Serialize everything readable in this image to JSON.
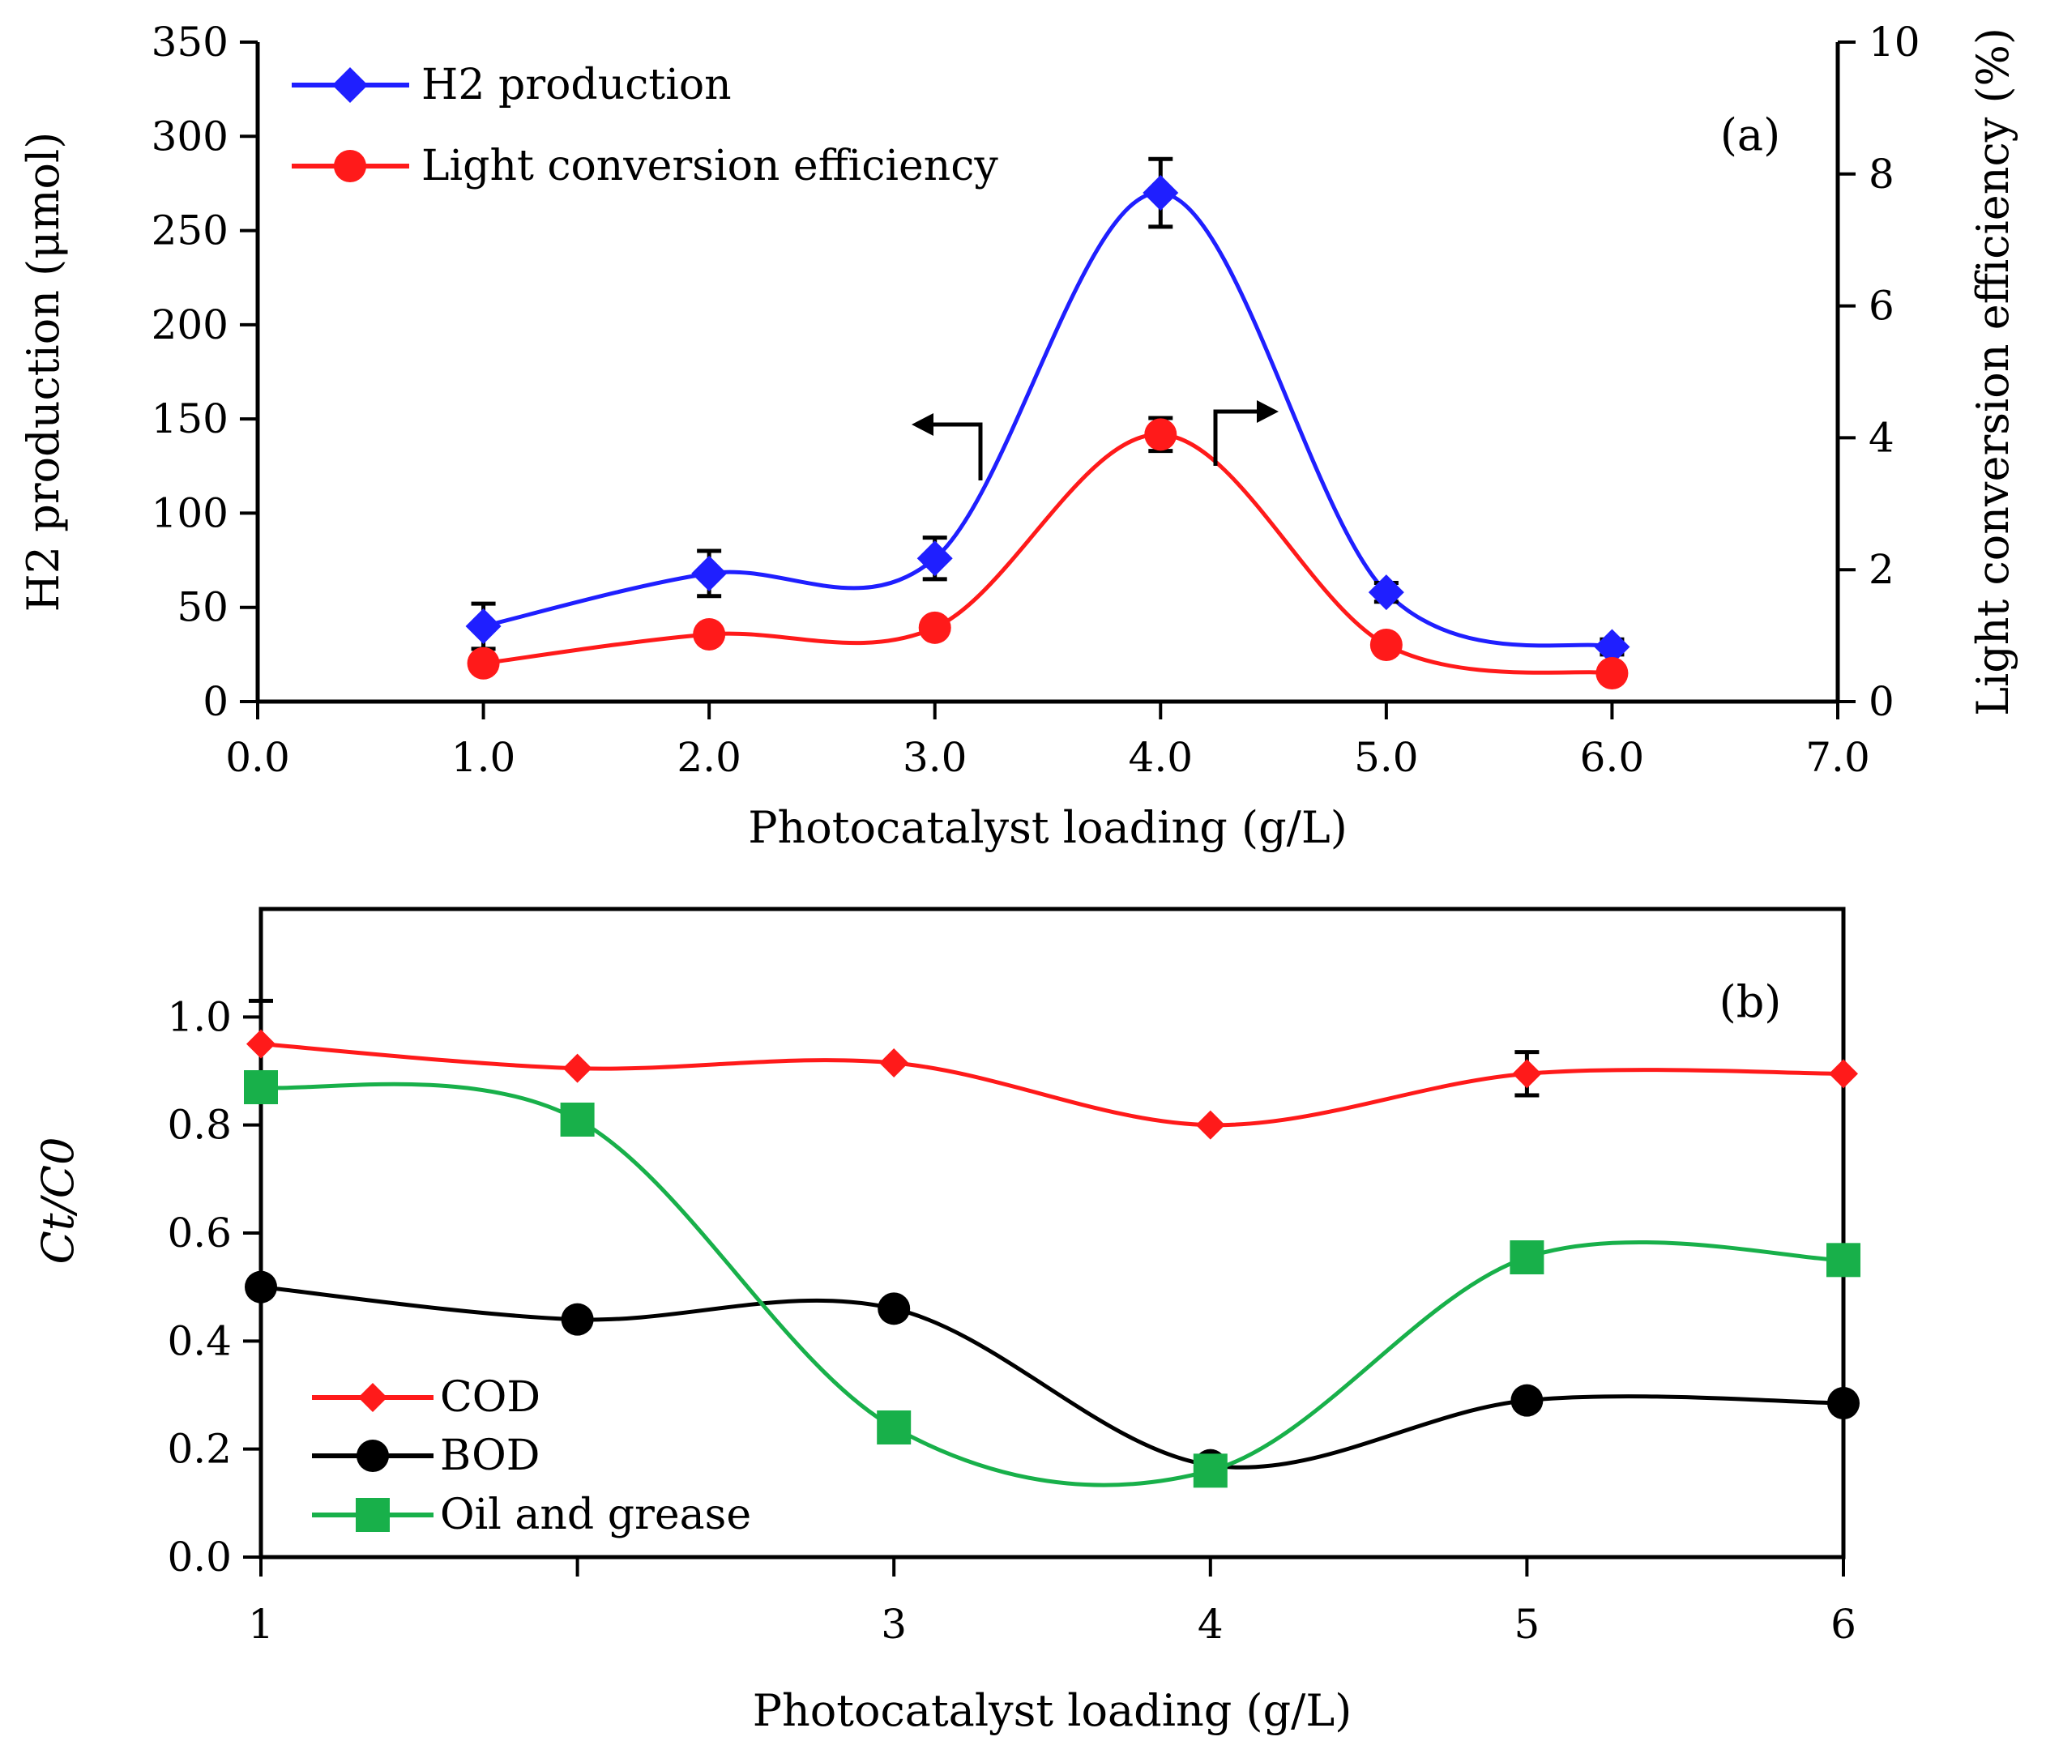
{
  "chart_data": [
    {
      "type": "line",
      "panel_label": "(a)",
      "xlabel": "Photocatalyst loading (g/L)",
      "ylabel": "H2 production (μmol)",
      "ylabel_right": "Light conversion efficiency (%)",
      "xlim": [
        0,
        7
      ],
      "ylim": [
        0,
        350
      ],
      "ylim_right": [
        0,
        10
      ],
      "x_ticks": [
        0,
        1,
        2,
        3,
        4,
        5,
        6,
        7
      ],
      "x_tick_labels": [
        "0.0",
        "1.0",
        "2.0",
        "3.0",
        "4.0",
        "5.0",
        "6.0",
        "7.0"
      ],
      "y_ticks": [
        0,
        50,
        100,
        150,
        200,
        250,
        300,
        350
      ],
      "y_tick_labels": [
        "0",
        "50",
        "100",
        "150",
        "200",
        "250",
        "300",
        "350"
      ],
      "y_right_ticks": [
        0,
        2,
        4,
        6,
        8,
        10
      ],
      "y_right_tick_labels": [
        "0",
        "2",
        "4",
        "6",
        "8",
        "10"
      ],
      "legend_position": "top-left",
      "series": [
        {
          "name": "H2 production",
          "axis": "left",
          "marker": "diamond",
          "color": "#1f1fff",
          "x": [
            1,
            2,
            3,
            4,
            5,
            6
          ],
          "values": [
            40,
            68,
            76,
            270,
            58,
            29
          ],
          "errors": [
            12,
            12,
            11,
            18,
            5,
            4
          ]
        },
        {
          "name": "Light conversion efficiency",
          "axis": "right",
          "marker": "circle",
          "color": "#ff1a1a",
          "x": [
            1,
            2,
            3,
            4,
            5,
            6
          ],
          "values": [
            0.58,
            1.02,
            1.12,
            4.05,
            0.86,
            0.43
          ],
          "errors": [
            0.12,
            0.1,
            0.06,
            0.25,
            0.03,
            0.03
          ]
        }
      ],
      "annotations": [
        "arrow left: H2 production on left axis",
        "arrow right: efficiency on right axis"
      ]
    },
    {
      "type": "line",
      "panel_label": "(b)",
      "xlabel": "Photocatalyst loading (g/L)",
      "ylabel": "Ct/C0",
      "xlim": [
        1,
        6
      ],
      "ylim": [
        0,
        1.2
      ],
      "x_ticks": [
        1,
        2,
        3,
        4,
        5,
        6
      ],
      "x_tick_labels": [
        "1",
        "",
        "3",
        "4",
        "5",
        "6"
      ],
      "y_ticks": [
        0,
        0.2,
        0.4,
        0.6,
        0.8,
        1.0
      ],
      "y_tick_labels": [
        "0.0",
        "0.2",
        "0.4",
        "0.6",
        "0.8",
        "1.0"
      ],
      "legend_position": "bottom-left",
      "series": [
        {
          "name": "COD",
          "marker": "diamond",
          "color": "#ff1a1a",
          "x": [
            1,
            2,
            3,
            4,
            5,
            6
          ],
          "values": [
            0.95,
            0.905,
            0.915,
            0.8,
            0.895,
            0.895
          ],
          "errors": [
            0.08,
            0,
            0,
            0,
            0.04,
            0
          ]
        },
        {
          "name": "BOD",
          "marker": "circle",
          "color": "#000000",
          "x": [
            1,
            2,
            3,
            4,
            5,
            6
          ],
          "values": [
            0.5,
            0.44,
            0.46,
            0.17,
            0.29,
            0.285
          ],
          "errors": [
            0,
            0,
            0,
            0,
            0,
            0
          ]
        },
        {
          "name": "Oil and grease",
          "marker": "square",
          "color": "#18b04a",
          "x": [
            1,
            2,
            3,
            4,
            5,
            6
          ],
          "values": [
            0.87,
            0.81,
            0.24,
            0.16,
            0.555,
            0.55
          ],
          "errors": [
            0,
            0,
            0,
            0,
            0,
            0
          ]
        }
      ]
    }
  ]
}
